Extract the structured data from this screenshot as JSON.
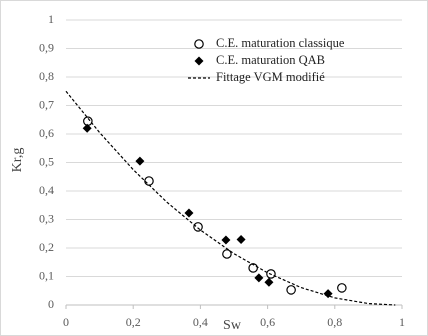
{
  "chart_data": {
    "type": "scatter",
    "x_label": "Sw",
    "y_label": "Kr,g",
    "xlim": [
      0,
      1
    ],
    "ylim": [
      0,
      1
    ],
    "xticks": [
      0,
      {
        "value": 0.2,
        "label": "0,2"
      },
      {
        "value": 0.4,
        "label": "0,4"
      },
      {
        "value": 0.6,
        "label": "0,6"
      },
      {
        "value": 0.8,
        "label": "0,8"
      },
      1
    ],
    "yticks": [
      0,
      {
        "value": 0.1,
        "label": "0,1"
      },
      {
        "value": 0.2,
        "label": "0,2"
      },
      {
        "value": 0.3,
        "label": "0,3"
      },
      {
        "value": 0.4,
        "label": "0,4"
      },
      {
        "value": 0.5,
        "label": "0,5"
      },
      {
        "value": 0.6,
        "label": "0,6"
      },
      {
        "value": 0.7,
        "label": "0,7"
      },
      {
        "value": 0.8,
        "label": "0,8"
      },
      {
        "value": 0.9,
        "label": "0,9"
      },
      1
    ],
    "grid": true,
    "legend": "top-right",
    "series": [
      {
        "name": "C.E. maturation classique",
        "color": "#000000",
        "marker": "open-circle",
        "x": [
          0.065,
          0.247,
          0.393,
          0.479,
          0.557,
          0.61,
          0.67,
          0.821
        ],
        "values": [
          0.645,
          0.435,
          0.274,
          0.179,
          0.13,
          0.109,
          0.053,
          0.06
        ]
      },
      {
        "name": "C.E. maturation QAB",
        "color": "#000000",
        "marker": "diamond",
        "x": [
          0.063,
          0.22,
          0.366,
          0.476,
          0.521,
          0.574,
          0.604,
          0.78
        ],
        "values": [
          0.62,
          0.505,
          0.323,
          0.228,
          0.23,
          0.095,
          0.08,
          0.04
        ]
      },
      {
        "name": "Fittage VGM modifié",
        "color": "#000000",
        "marker": "dashed-line",
        "x": [
          0,
          0.1,
          0.2,
          0.3,
          0.4,
          0.5,
          0.6,
          0.7,
          0.8,
          0.9,
          0.98
        ],
        "values": [
          0.75,
          0.605,
          0.475,
          0.361,
          0.263,
          0.18,
          0.113,
          0.061,
          0.025,
          0.005,
          0
        ]
      }
    ]
  }
}
